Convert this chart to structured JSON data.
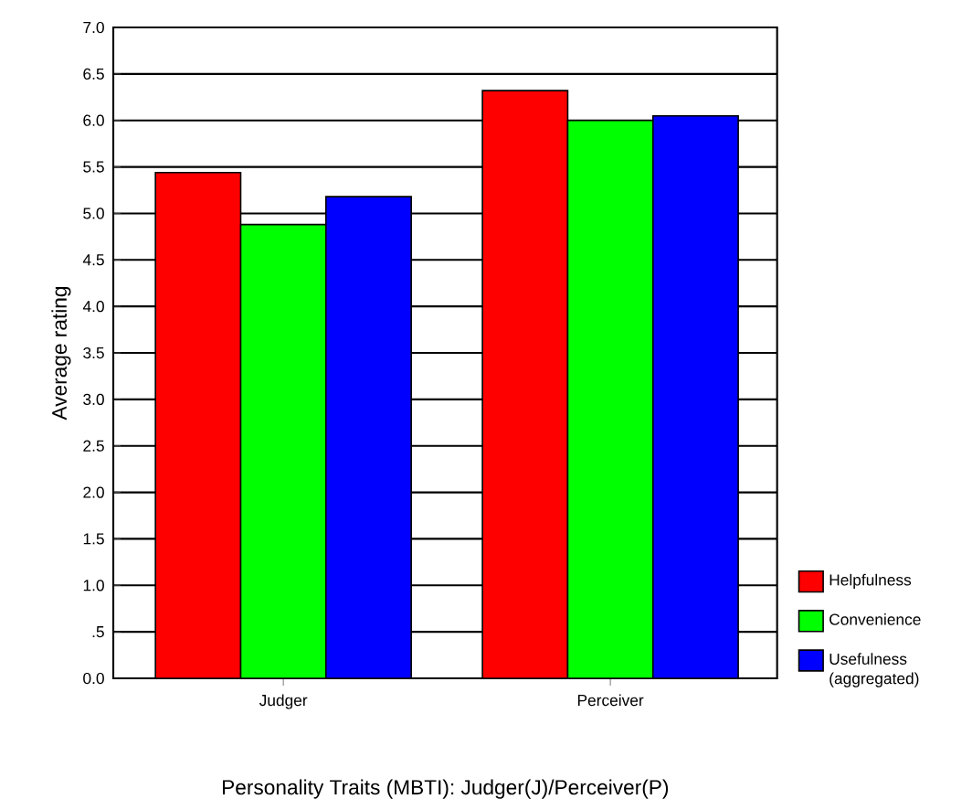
{
  "chart_data": {
    "type": "bar",
    "xlabel": "Personality Traits (MBTI): Judger(J)/Perceiver(P)",
    "ylabel": "Average rating",
    "categories": [
      "Judger",
      "Perceiver"
    ],
    "series": [
      {
        "name": "Helpfulness",
        "color": "#ff0000",
        "values": [
          5.44,
          6.32
        ]
      },
      {
        "name": "Convenience",
        "color": "#00ff00",
        "values": [
          4.88,
          6.0
        ]
      },
      {
        "name": "Usefulness (aggregated)",
        "color": "#0000ff",
        "values": [
          5.18,
          6.05
        ]
      }
    ],
    "ylim": [
      0,
      7
    ],
    "yticks": [
      {
        "value": 0,
        "label": "0.0"
      },
      {
        "value": 0.5,
        "label": ".5"
      },
      {
        "value": 1,
        "label": "1.0"
      },
      {
        "value": 1.5,
        "label": "1.5"
      },
      {
        "value": 2,
        "label": "2.0"
      },
      {
        "value": 2.5,
        "label": "2.5"
      },
      {
        "value": 3,
        "label": "3.0"
      },
      {
        "value": 3.5,
        "label": "3.5"
      },
      {
        "value": 4,
        "label": "4.0"
      },
      {
        "value": 4.5,
        "label": "4.5"
      },
      {
        "value": 5,
        "label": "5.0"
      },
      {
        "value": 5.5,
        "label": "5.5"
      },
      {
        "value": 6,
        "label": "6.0"
      },
      {
        "value": 6.5,
        "label": "6.5"
      },
      {
        "value": 7,
        "label": "7.0"
      }
    ],
    "grid": "y",
    "legend": "right"
  }
}
